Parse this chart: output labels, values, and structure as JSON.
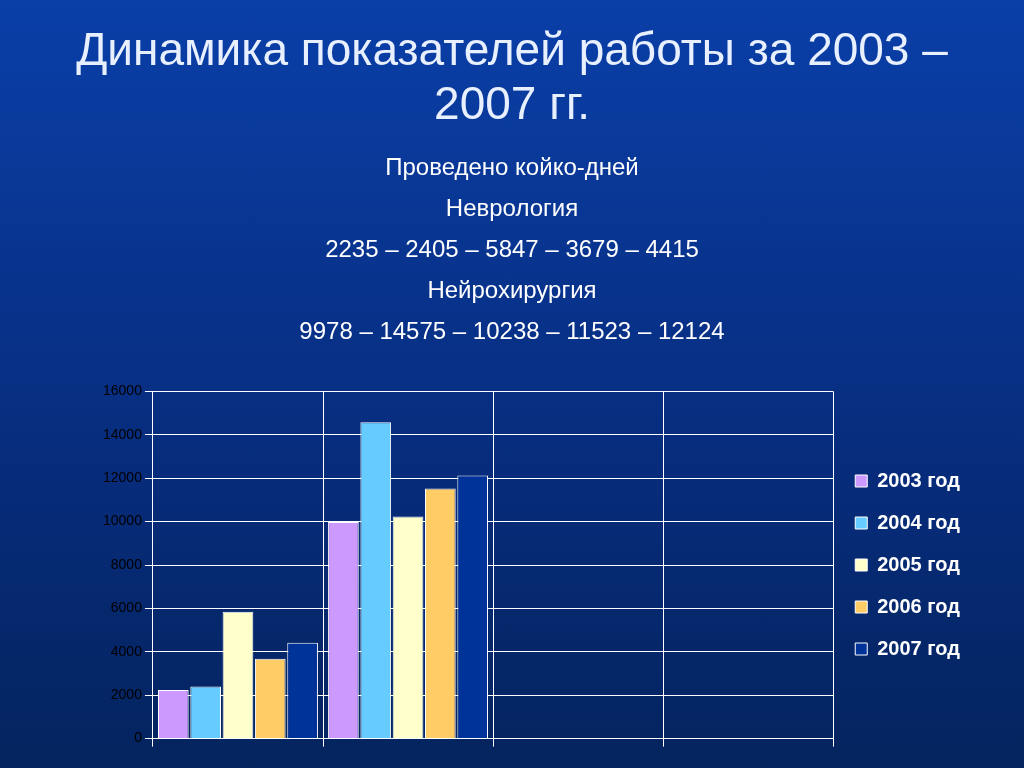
{
  "chart_data": {
    "type": "bar",
    "title": "Динамика показателей работы за 2003 – 2007 гг.",
    "subtitle": "Проведено койко-дней",
    "annotations": [
      "Неврология",
      "2235 – 2405 – 5847 – 3679 – 4415",
      "Нейрохирургия",
      "9978 – 14575 – 10238 – 11523 – 12124"
    ],
    "categories": [
      null,
      null,
      null,
      null
    ],
    "series": [
      {
        "name": "2003 год",
        "color": "#cc99ff",
        "values": [
          2235,
          9978,
          null,
          null
        ]
      },
      {
        "name": "2004 год",
        "color": "#66ccff",
        "values": [
          2405,
          14575,
          null,
          null
        ]
      },
      {
        "name": "2005 год",
        "color": "#ffffcc",
        "values": [
          5847,
          10238,
          null,
          null
        ]
      },
      {
        "name": "2006 год",
        "color": "#ffcc66",
        "values": [
          3679,
          11523,
          null,
          null
        ]
      },
      {
        "name": "2007 год",
        "color": "#003399",
        "values": [
          4415,
          12124,
          null,
          null
        ]
      }
    ],
    "ylim": [
      0,
      16000
    ],
    "yticks": [
      0,
      2000,
      4000,
      6000,
      8000,
      10000,
      12000,
      14000,
      16000
    ],
    "grid": "y",
    "legend": "right"
  }
}
